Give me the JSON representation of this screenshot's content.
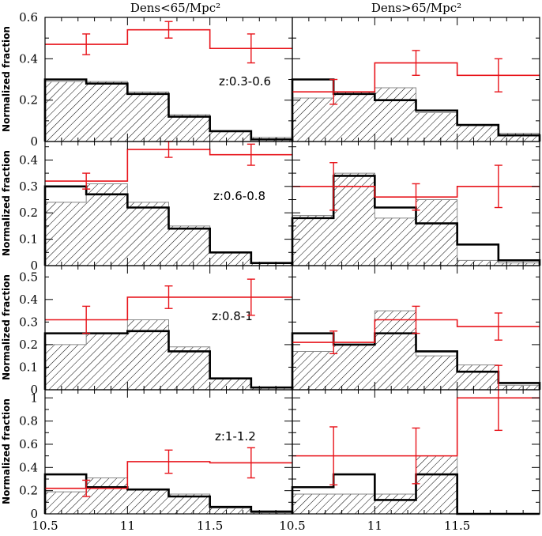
{
  "chart_data": {
    "type": "histogram-grid",
    "column_titles": [
      "Dens<65/Mpc²",
      "Dens>65/Mpc²"
    ],
    "ylabel": "Normalized fraction",
    "x_bin_edges": [
      10.5,
      10.75,
      11.0,
      11.25,
      11.5,
      11.75,
      12.0
    ],
    "x_coarse_bin_edges": [
      10.5,
      11.0,
      11.5,
      12.0
    ],
    "x_coarse_centers": [
      10.75,
      11.25,
      11.75
    ],
    "x_tick_labels": [
      "10.5",
      "11",
      "11.5",
      "10.5",
      "11",
      "11.5"
    ],
    "legend": {
      "hatched": "hatched histogram",
      "black": "black histogram",
      "red": "red histogram with error bars"
    },
    "rows": [
      {
        "label": "z:0.3-0.6",
        "ylim": [
          0,
          0.6
        ],
        "yticks": [
          "0",
          "0.2",
          "0.4",
          "0.6"
        ],
        "panels": [
          {
            "hatched": [
              0.29,
              0.29,
              0.24,
              0.13,
              0.05,
              0.02
            ],
            "black": [
              0.3,
              0.28,
              0.23,
              0.12,
              0.05,
              0.01
            ],
            "red": [
              0.47,
              0.54,
              0.45
            ],
            "red_err": [
              0.05,
              0.04,
              0.07
            ]
          },
          {
            "hatched": [
              0.21,
              0.24,
              0.26,
              0.14,
              0.08,
              0.04
            ],
            "black": [
              0.3,
              0.23,
              0.2,
              0.15,
              0.08,
              0.03
            ],
            "red": [
              0.24,
              0.38,
              0.32
            ],
            "red_err": [
              0.06,
              0.06,
              0.08
            ]
          }
        ]
      },
      {
        "label": "z:0.6-0.8",
        "ylim": [
          0,
          0.47
        ],
        "yticks": [
          "0",
          "0.1",
          "0.2",
          "0.3",
          "0.4"
        ],
        "panels": [
          {
            "hatched": [
              0.24,
              0.31,
              0.24,
              0.15,
              0.05,
              0.01
            ],
            "black": [
              0.3,
              0.27,
              0.22,
              0.14,
              0.05,
              0.01
            ],
            "red": [
              0.32,
              0.44,
              0.42
            ],
            "red_err": [
              0.03,
              0.03,
              0.04
            ]
          },
          {
            "hatched": [
              0.19,
              0.35,
              0.18,
              0.25,
              0.02,
              0.01
            ],
            "black": [
              0.18,
              0.34,
              0.22,
              0.16,
              0.08,
              0.02
            ],
            "red": [
              0.3,
              0.26,
              0.3
            ],
            "red_err": [
              0.09,
              0.05,
              0.08
            ]
          }
        ]
      },
      {
        "label": "z:0.8-1",
        "ylim": [
          0,
          0.55
        ],
        "yticks": [
          "0",
          "0.1",
          "0.2",
          "0.3",
          "0.4",
          "0.5"
        ],
        "panels": [
          {
            "hatched": [
              0.2,
              0.25,
              0.31,
              0.19,
              0.05,
              0.01
            ],
            "black": [
              0.25,
              0.25,
              0.26,
              0.17,
              0.05,
              0.01
            ],
            "red": [
              0.31,
              0.41,
              0.41
            ],
            "red_err": [
              0.06,
              0.05,
              0.08
            ]
          },
          {
            "hatched": [
              0.17,
              0.2,
              0.35,
              0.15,
              0.11,
              0.02
            ],
            "black": [
              0.25,
              0.2,
              0.25,
              0.17,
              0.08,
              0.03
            ],
            "red": [
              0.21,
              0.31,
              0.28
            ],
            "red_err": [
              0.05,
              0.06,
              0.06
            ]
          }
        ]
      },
      {
        "label": "z:1-1.2",
        "ylim": [
          0,
          1.07
        ],
        "yticks": [
          "0",
          "0.2",
          "0.4",
          "0.6",
          "0.8",
          "1"
        ],
        "panels": [
          {
            "hatched": [
              0.19,
              0.31,
              0.21,
              0.17,
              0.05,
              0.01
            ],
            "black": [
              0.34,
              0.23,
              0.21,
              0.15,
              0.06,
              0.02
            ],
            "red": [
              0.22,
              0.45,
              0.44
            ],
            "red_err": [
              0.07,
              0.1,
              0.13
            ]
          },
          {
            "hatched": [
              0.17,
              0.17,
              0.17,
              0.5,
              0.0,
              0.0
            ],
            "black": [
              0.23,
              0.34,
              0.12,
              0.34,
              0.0,
              0.0
            ],
            "red": [
              0.5,
              0.5,
              1.0
            ],
            "red_err": [
              0.25,
              0.24,
              0.28
            ]
          }
        ]
      }
    ]
  }
}
